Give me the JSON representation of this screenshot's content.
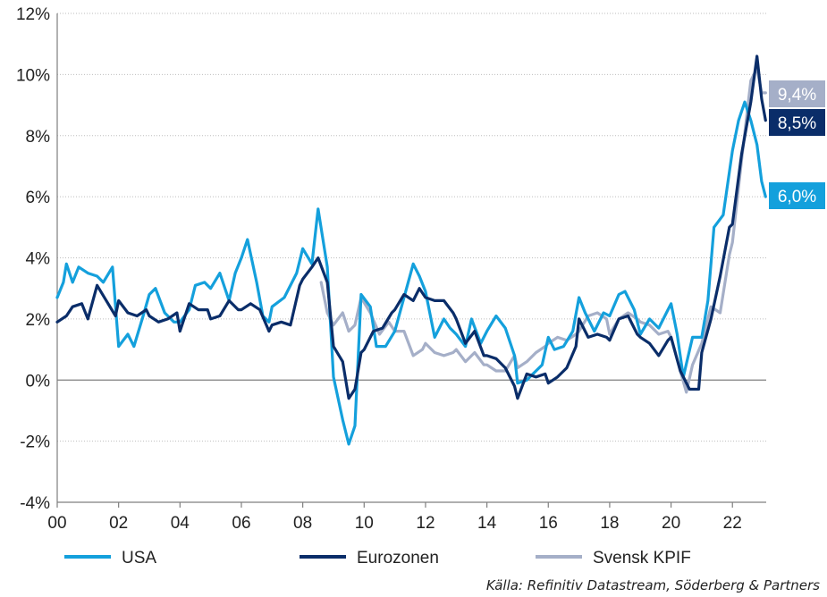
{
  "chart_data": {
    "type": "line",
    "x_range": [
      2000,
      2023.1
    ],
    "ylim": [
      -4,
      12
    ],
    "y_ticks": [
      -4,
      -2,
      0,
      2,
      4,
      6,
      8,
      10,
      12
    ],
    "y_tick_labels": [
      "-4%",
      "-2%",
      "0%",
      "2%",
      "4%",
      "6%",
      "8%",
      "10%",
      "12%"
    ],
    "x_ticks": [
      2000,
      2002,
      2004,
      2006,
      2008,
      2010,
      2012,
      2014,
      2016,
      2018,
      2020,
      2022
    ],
    "x_tick_labels": [
      "00",
      "02",
      "04",
      "06",
      "08",
      "10",
      "12",
      "14",
      "16",
      "18",
      "20",
      "22"
    ],
    "grid": "horizontal dotted",
    "legend_position": "bottom",
    "series": [
      {
        "name": "USA",
        "color": "#14a0dc",
        "end_label": "6,0%",
        "points": [
          [
            2000.0,
            2.7
          ],
          [
            2000.2,
            3.2
          ],
          [
            2000.3,
            3.8
          ],
          [
            2000.5,
            3.2
          ],
          [
            2000.7,
            3.7
          ],
          [
            2001.0,
            3.5
          ],
          [
            2001.3,
            3.4
          ],
          [
            2001.5,
            3.2
          ],
          [
            2001.8,
            3.7
          ],
          [
            2002.0,
            1.1
          ],
          [
            2002.3,
            1.5
          ],
          [
            2002.5,
            1.1
          ],
          [
            2002.8,
            2.1
          ],
          [
            2003.0,
            2.8
          ],
          [
            2003.2,
            3.0
          ],
          [
            2003.5,
            2.2
          ],
          [
            2003.8,
            1.9
          ],
          [
            2004.0,
            1.9
          ],
          [
            2004.3,
            2.3
          ],
          [
            2004.5,
            3.1
          ],
          [
            2004.8,
            3.2
          ],
          [
            2005.0,
            3.0
          ],
          [
            2005.3,
            3.5
          ],
          [
            2005.6,
            2.6
          ],
          [
            2005.8,
            3.5
          ],
          [
            2006.0,
            4.0
          ],
          [
            2006.2,
            4.6
          ],
          [
            2006.5,
            3.2
          ],
          [
            2006.7,
            2.1
          ],
          [
            2006.9,
            1.9
          ],
          [
            2007.0,
            2.4
          ],
          [
            2007.4,
            2.7
          ],
          [
            2007.8,
            3.5
          ],
          [
            2008.0,
            4.3
          ],
          [
            2008.3,
            3.8
          ],
          [
            2008.5,
            5.6
          ],
          [
            2008.8,
            3.7
          ],
          [
            2009.0,
            0.1
          ],
          [
            2009.3,
            -1.3
          ],
          [
            2009.5,
            -2.1
          ],
          [
            2009.7,
            -1.5
          ],
          [
            2009.9,
            2.8
          ],
          [
            2010.2,
            2.4
          ],
          [
            2010.4,
            1.1
          ],
          [
            2010.7,
            1.1
          ],
          [
            2011.0,
            1.6
          ],
          [
            2011.3,
            2.7
          ],
          [
            2011.6,
            3.8
          ],
          [
            2011.8,
            3.4
          ],
          [
            2012.0,
            2.9
          ],
          [
            2012.3,
            1.4
          ],
          [
            2012.6,
            2.0
          ],
          [
            2012.8,
            1.7
          ],
          [
            2013.0,
            1.5
          ],
          [
            2013.3,
            1.1
          ],
          [
            2013.5,
            2.0
          ],
          [
            2013.8,
            1.2
          ],
          [
            2014.0,
            1.6
          ],
          [
            2014.3,
            2.1
          ],
          [
            2014.6,
            1.7
          ],
          [
            2014.9,
            0.8
          ],
          [
            2015.0,
            -0.1
          ],
          [
            2015.3,
            0.0
          ],
          [
            2015.5,
            0.2
          ],
          [
            2015.8,
            0.5
          ],
          [
            2016.0,
            1.4
          ],
          [
            2016.2,
            1.0
          ],
          [
            2016.5,
            1.1
          ],
          [
            2016.8,
            1.6
          ],
          [
            2017.0,
            2.7
          ],
          [
            2017.2,
            2.2
          ],
          [
            2017.5,
            1.6
          ],
          [
            2017.8,
            2.2
          ],
          [
            2018.0,
            2.1
          ],
          [
            2018.3,
            2.8
          ],
          [
            2018.5,
            2.9
          ],
          [
            2018.8,
            2.3
          ],
          [
            2019.0,
            1.5
          ],
          [
            2019.3,
            2.0
          ],
          [
            2019.6,
            1.7
          ],
          [
            2019.9,
            2.3
          ],
          [
            2020.0,
            2.5
          ],
          [
            2020.2,
            1.5
          ],
          [
            2020.4,
            0.1
          ],
          [
            2020.7,
            1.4
          ],
          [
            2021.0,
            1.4
          ],
          [
            2021.2,
            2.6
          ],
          [
            2021.4,
            5.0
          ],
          [
            2021.7,
            5.4
          ],
          [
            2022.0,
            7.5
          ],
          [
            2022.2,
            8.5
          ],
          [
            2022.4,
            9.1
          ],
          [
            2022.6,
            8.5
          ],
          [
            2022.8,
            7.7
          ],
          [
            2022.95,
            6.5
          ],
          [
            2023.08,
            6.0
          ]
        ]
      },
      {
        "name": "Eurozonen",
        "color": "#0a2d69",
        "end_label": "8,5%",
        "points": [
          [
            2000.0,
            1.9
          ],
          [
            2000.3,
            2.1
          ],
          [
            2000.5,
            2.4
          ],
          [
            2000.8,
            2.5
          ],
          [
            2001.0,
            2.0
          ],
          [
            2001.3,
            3.1
          ],
          [
            2001.6,
            2.6
          ],
          [
            2001.9,
            2.1
          ],
          [
            2002.0,
            2.6
          ],
          [
            2002.3,
            2.2
          ],
          [
            2002.6,
            2.1
          ],
          [
            2002.9,
            2.3
          ],
          [
            2003.0,
            2.1
          ],
          [
            2003.3,
            1.9
          ],
          [
            2003.6,
            2.0
          ],
          [
            2003.9,
            2.2
          ],
          [
            2004.0,
            1.6
          ],
          [
            2004.3,
            2.5
          ],
          [
            2004.6,
            2.3
          ],
          [
            2004.9,
            2.3
          ],
          [
            2005.0,
            2.0
          ],
          [
            2005.3,
            2.1
          ],
          [
            2005.6,
            2.6
          ],
          [
            2005.9,
            2.3
          ],
          [
            2006.0,
            2.3
          ],
          [
            2006.3,
            2.5
          ],
          [
            2006.6,
            2.3
          ],
          [
            2006.9,
            1.6
          ],
          [
            2007.0,
            1.8
          ],
          [
            2007.3,
            1.9
          ],
          [
            2007.6,
            1.8
          ],
          [
            2007.9,
            3.1
          ],
          [
            2008.0,
            3.3
          ],
          [
            2008.3,
            3.7
          ],
          [
            2008.5,
            4.0
          ],
          [
            2008.8,
            3.2
          ],
          [
            2009.0,
            1.1
          ],
          [
            2009.3,
            0.6
          ],
          [
            2009.5,
            -0.6
          ],
          [
            2009.7,
            -0.3
          ],
          [
            2009.9,
            0.9
          ],
          [
            2010.0,
            1.0
          ],
          [
            2010.3,
            1.6
          ],
          [
            2010.6,
            1.7
          ],
          [
            2010.9,
            2.2
          ],
          [
            2011.0,
            2.3
          ],
          [
            2011.3,
            2.8
          ],
          [
            2011.6,
            2.6
          ],
          [
            2011.8,
            3.0
          ],
          [
            2012.0,
            2.7
          ],
          [
            2012.3,
            2.6
          ],
          [
            2012.6,
            2.6
          ],
          [
            2012.9,
            2.2
          ],
          [
            2013.0,
            2.0
          ],
          [
            2013.3,
            1.2
          ],
          [
            2013.6,
            1.6
          ],
          [
            2013.9,
            0.8
          ],
          [
            2014.0,
            0.8
          ],
          [
            2014.3,
            0.7
          ],
          [
            2014.6,
            0.4
          ],
          [
            2014.9,
            -0.2
          ],
          [
            2015.0,
            -0.6
          ],
          [
            2015.3,
            0.2
          ],
          [
            2015.6,
            0.1
          ],
          [
            2015.9,
            0.2
          ],
          [
            2016.0,
            -0.1
          ],
          [
            2016.3,
            0.1
          ],
          [
            2016.6,
            0.4
          ],
          [
            2016.9,
            1.1
          ],
          [
            2017.0,
            2.0
          ],
          [
            2017.3,
            1.4
          ],
          [
            2017.6,
            1.5
          ],
          [
            2017.9,
            1.4
          ],
          [
            2018.0,
            1.3
          ],
          [
            2018.3,
            2.0
          ],
          [
            2018.6,
            2.1
          ],
          [
            2018.9,
            1.5
          ],
          [
            2019.0,
            1.4
          ],
          [
            2019.3,
            1.2
          ],
          [
            2019.6,
            0.8
          ],
          [
            2019.9,
            1.3
          ],
          [
            2020.0,
            1.4
          ],
          [
            2020.3,
            0.3
          ],
          [
            2020.6,
            -0.3
          ],
          [
            2020.9,
            -0.3
          ],
          [
            2021.0,
            0.9
          ],
          [
            2021.3,
            2.0
          ],
          [
            2021.6,
            3.4
          ],
          [
            2021.9,
            5.0
          ],
          [
            2022.0,
            5.1
          ],
          [
            2022.3,
            7.4
          ],
          [
            2022.6,
            9.1
          ],
          [
            2022.8,
            10.6
          ],
          [
            2022.95,
            9.2
          ],
          [
            2023.08,
            8.5
          ]
        ]
      },
      {
        "name": "Svensk KPIF",
        "color": "#a5afc8",
        "end_label": "9,4%",
        "points": [
          [
            2008.6,
            3.2
          ],
          [
            2008.8,
            2.2
          ],
          [
            2009.0,
            1.8
          ],
          [
            2009.3,
            2.2
          ],
          [
            2009.5,
            1.6
          ],
          [
            2009.7,
            1.8
          ],
          [
            2009.9,
            2.7
          ],
          [
            2010.2,
            2.2
          ],
          [
            2010.5,
            1.5
          ],
          [
            2010.8,
            1.9
          ],
          [
            2011.0,
            1.6
          ],
          [
            2011.3,
            1.6
          ],
          [
            2011.6,
            0.8
          ],
          [
            2011.9,
            1.0
          ],
          [
            2012.0,
            1.2
          ],
          [
            2012.3,
            0.9
          ],
          [
            2012.6,
            0.8
          ],
          [
            2012.9,
            0.9
          ],
          [
            2013.0,
            1.0
          ],
          [
            2013.3,
            0.6
          ],
          [
            2013.6,
            0.9
          ],
          [
            2013.9,
            0.5
          ],
          [
            2014.0,
            0.5
          ],
          [
            2014.3,
            0.3
          ],
          [
            2014.6,
            0.3
          ],
          [
            2014.9,
            0.8
          ],
          [
            2015.0,
            0.4
          ],
          [
            2015.3,
            0.6
          ],
          [
            2015.6,
            0.9
          ],
          [
            2015.9,
            1.1
          ],
          [
            2016.0,
            1.2
          ],
          [
            2016.3,
            1.4
          ],
          [
            2016.6,
            1.3
          ],
          [
            2016.9,
            1.5
          ],
          [
            2017.0,
            1.6
          ],
          [
            2017.3,
            2.1
          ],
          [
            2017.6,
            2.2
          ],
          [
            2017.9,
            2.0
          ],
          [
            2018.0,
            1.5
          ],
          [
            2018.3,
            2.0
          ],
          [
            2018.6,
            2.2
          ],
          [
            2018.9,
            2.0
          ],
          [
            2019.0,
            1.9
          ],
          [
            2019.3,
            1.8
          ],
          [
            2019.6,
            1.5
          ],
          [
            2019.9,
            1.6
          ],
          [
            2020.0,
            1.4
          ],
          [
            2020.3,
            0.3
          ],
          [
            2020.5,
            -0.4
          ],
          [
            2020.7,
            0.5
          ],
          [
            2021.0,
            1.2
          ],
          [
            2021.3,
            2.4
          ],
          [
            2021.6,
            2.2
          ],
          [
            2021.9,
            4.1
          ],
          [
            2022.0,
            4.5
          ],
          [
            2022.3,
            7.2
          ],
          [
            2022.6,
            9.8
          ],
          [
            2022.8,
            10.2
          ],
          [
            2022.95,
            9.4
          ],
          [
            2023.08,
            9.4
          ]
        ]
      }
    ]
  },
  "source_text": "Källa: Refinitiv Datastream, Söderberg & Partners"
}
